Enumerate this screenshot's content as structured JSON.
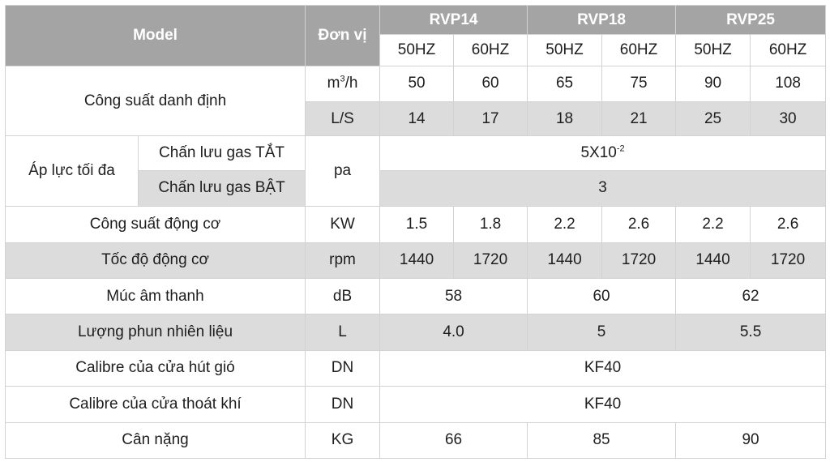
{
  "header": {
    "model": "Model",
    "unit": "Đơn vị",
    "models": [
      "RVP14",
      "RVP18",
      "RVP25"
    ],
    "freqs": [
      "50HZ",
      "60HZ",
      "50HZ",
      "60HZ",
      "50HZ",
      "60HZ"
    ]
  },
  "rows": {
    "rated_capacity": {
      "label": "Công suất danh định",
      "unit1_base": "m",
      "unit1_sup": "3",
      "unit1_tail": "/h",
      "values1": [
        "50",
        "60",
        "65",
        "75",
        "90",
        "108"
      ],
      "unit2": "L/S",
      "values2": [
        "14",
        "17",
        "18",
        "21",
        "25",
        "30"
      ]
    },
    "max_pressure": {
      "label": "Áp lực tối đa",
      "sub1": "Chấn lưu gas TẮT",
      "sub2": "Chấn lưu gas BẬT",
      "unit": "pa",
      "value1_base": "5X10",
      "value1_sup": "-2",
      "value2": "3"
    },
    "motor_power": {
      "label": "Công suất động cơ",
      "unit": "KW",
      "values": [
        "1.5",
        "1.8",
        "2.2",
        "2.6",
        "2.2",
        "2.6"
      ]
    },
    "motor_speed": {
      "label": "Tốc độ động cơ",
      "unit": "rpm",
      "values": [
        "1440",
        "1720",
        "1440",
        "1720",
        "1440",
        "1720"
      ]
    },
    "sound_level": {
      "label": "Múc âm thanh",
      "unit": "dB",
      "values": [
        "58",
        "60",
        "62"
      ]
    },
    "fuel_spray": {
      "label": "Lượng phun nhiên liệu",
      "unit": "L",
      "values": [
        "4.0",
        "5",
        "5.5"
      ]
    },
    "inlet_calibre": {
      "label": "Calibre của cửa hút gió",
      "unit": "DN",
      "value": "KF40"
    },
    "outlet_calibre": {
      "label": "Calibre của cửa thoát khí",
      "unit": "DN",
      "value": "KF40"
    },
    "weight": {
      "label": "Cân nặng",
      "unit": "KG",
      "values": [
        "66",
        "85",
        "90"
      ]
    }
  }
}
